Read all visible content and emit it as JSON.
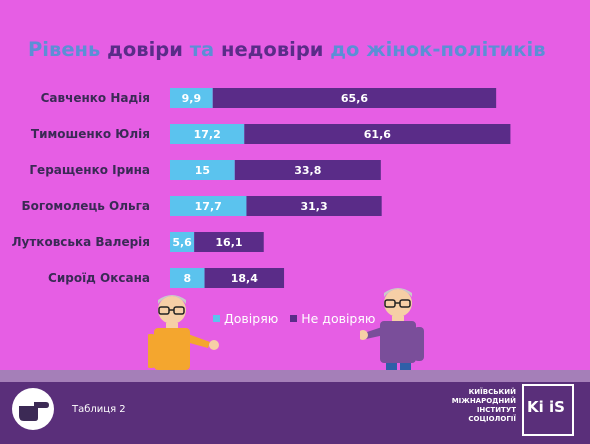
{
  "title": {
    "part1": "Рівень ",
    "part2": "довіри",
    "part3": " та ",
    "part4": "недовіри",
    "part5": " до жінок-політиків"
  },
  "colors": {
    "background": "#e65ee4",
    "trust": "#5bc3ee",
    "distrust": "#5a2c88",
    "title": "#5b8fd6"
  },
  "chart_data": {
    "type": "bar",
    "orientation": "horizontal",
    "stacked": true,
    "categories": [
      "Савченко Надія",
      "Тимошенко Юлія",
      "Геращенко Ірина",
      "Богомолець Ольга",
      "Лутковська Валерія",
      "Сироїд Оксана"
    ],
    "series": [
      {
        "name": "Довіряю",
        "values": [
          9.9,
          17.2,
          15,
          17.7,
          5.6,
          8
        ],
        "labels": [
          "9,9",
          "17,2",
          "15",
          "17,7",
          "5,6",
          "8"
        ],
        "color": "#5bc3ee"
      },
      {
        "name": "Не довіряю",
        "values": [
          65.6,
          61.6,
          33.8,
          31.3,
          16.1,
          18.4
        ],
        "labels": [
          "65,6",
          "61,6",
          "33,8",
          "31,3",
          "16,1",
          "18,4"
        ],
        "color": "#5a2c88"
      }
    ],
    "legend_position": "bottom"
  },
  "footer": {
    "table_label": "Таблиця 2",
    "logo_lines": [
      "КИЇВСЬКИЙ",
      "МІЖНАРОДНИЙ",
      "ІНСТИТУТ СОЦІОЛОГІЇ"
    ],
    "logo_mark": "Ki iS"
  },
  "icons": {
    "pointing_hand": "pointing-hand-icon"
  }
}
